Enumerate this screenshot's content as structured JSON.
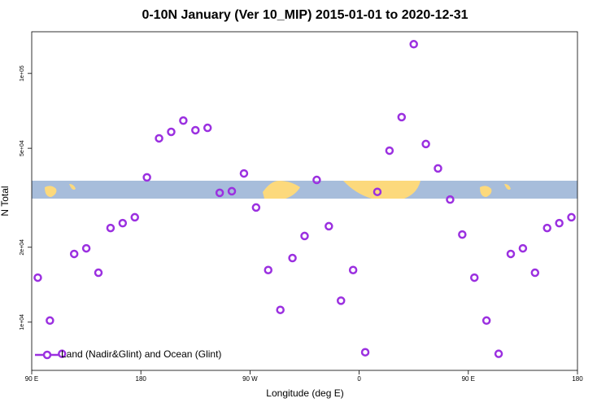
{
  "chart_data": {
    "type": "scatter",
    "title": "0-10N January (Ver 10_MIP)   2015-01-01 to 2020-12-31",
    "x_label": "Longitude (deg E)",
    "y_label": "N Total",
    "y_log": true,
    "legend_position": "bottom-left",
    "x": [
      95,
      105,
      115,
      125,
      135,
      145,
      155,
      165,
      175,
      185,
      195,
      205,
      215,
      225,
      235,
      245,
      255,
      265,
      275,
      285,
      295,
      305,
      315,
      325,
      335,
      345,
      355,
      365,
      375,
      385,
      395,
      405,
      415,
      425,
      435,
      445,
      455,
      465,
      475,
      485,
      495,
      505,
      515,
      525,
      535
    ],
    "series": [
      {
        "name": "Land (Nadir&Glint) and Ocean (Glint)",
        "color": "#9b30e0",
        "values": [
          15100,
          10150,
          7460,
          18800,
          19800,
          15800,
          23900,
          25000,
          26400,
          38200,
          54800,
          58200,
          64600,
          59100,
          60400,
          33100,
          33600,
          39600,
          28900,
          16200,
          11200,
          18100,
          22200,
          37300,
          24300,
          12200,
          16200,
          7570,
          33400,
          48900,
          66700,
          131000,
          52000,
          41500,
          31100,
          22500,
          15100,
          10150,
          7460,
          18800,
          19800,
          15800,
          23900,
          25000,
          26400
        ]
      }
    ],
    "xlim": [
      90,
      540
    ],
    "xticks": [
      {
        "value": 90,
        "label": "90 E"
      },
      180,
      {
        "value": 270,
        "label": "90 W"
      },
      {
        "value": 360,
        "label": "0"
      },
      {
        "value": 450,
        "label": "90 E"
      },
      {
        "value": 540,
        "label": "180"
      }
    ],
    "ylim": [
      6400,
      147000
    ],
    "yticks": [
      {
        "value": 10000,
        "label": "1e+04"
      },
      {
        "value": 20000,
        "label": "2e+04"
      },
      {
        "value": 50000,
        "label": "5e+04"
      },
      {
        "value": 100000,
        "label": "1e+05"
      }
    ]
  }
}
